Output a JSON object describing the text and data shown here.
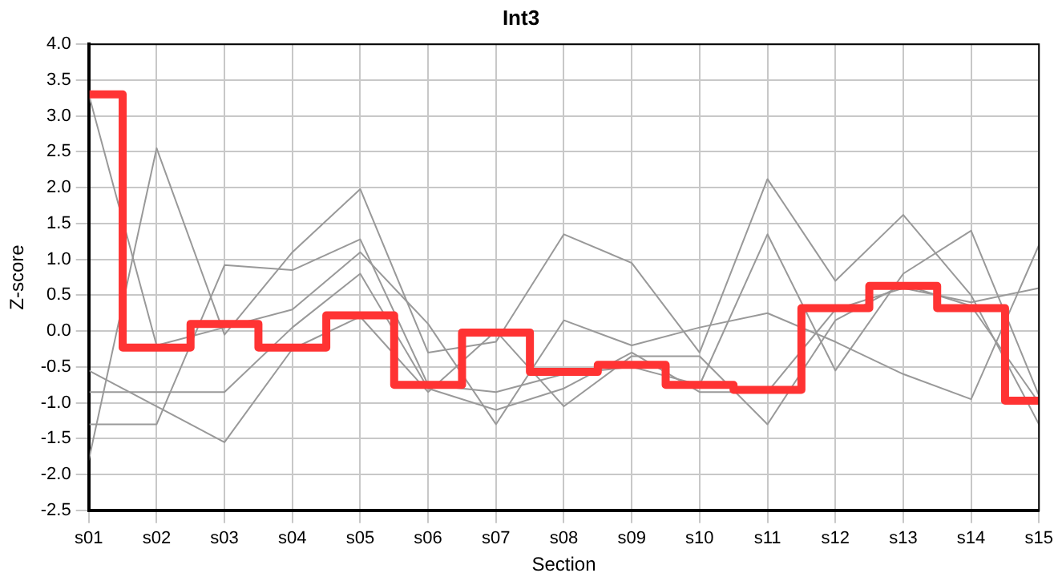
{
  "chart_data": {
    "type": "line",
    "title": "Int3",
    "xlabel": "Section",
    "ylabel": "Z-score",
    "categories": [
      "s01",
      "s02",
      "s03",
      "s04",
      "s05",
      "s06",
      "s07",
      "s08",
      "s09",
      "s10",
      "s11",
      "s12",
      "s13",
      "s14",
      "s15"
    ],
    "series": [
      {
        "type": "line",
        "color": "#999999",
        "values": [
          3.3,
          -0.2,
          0.05,
          0.3,
          1.1,
          0.1,
          -1.3,
          0.15,
          -0.2,
          0.05,
          0.25,
          -0.15,
          -0.6,
          -0.95,
          1.2
        ]
      },
      {
        "type": "line",
        "color": "#999999",
        "values": [
          -1.8,
          2.55,
          -0.05,
          1.1,
          1.98,
          -0.3,
          -0.15,
          1.35,
          0.95,
          -0.3,
          2.12,
          0.7,
          1.62,
          0.5,
          -1.3
        ]
      },
      {
        "type": "line",
        "color": "#999999",
        "values": [
          -1.3,
          -1.3,
          0.92,
          0.85,
          1.28,
          -0.75,
          -0.85,
          -0.6,
          -0.5,
          -0.75,
          1.35,
          -0.55,
          0.8,
          1.4,
          -0.9
        ]
      },
      {
        "type": "line",
        "color": "#999999",
        "values": [
          -0.85,
          -0.85,
          -0.85,
          0.05,
          0.8,
          -0.8,
          -1.1,
          -0.8,
          -0.3,
          -0.85,
          -0.85,
          0.3,
          0.6,
          0.4,
          0.6
        ]
      },
      {
        "type": "line",
        "color": "#999999",
        "values": [
          -0.55,
          -1.05,
          -1.55,
          -0.25,
          0.2,
          -0.85,
          0.0,
          -1.05,
          -0.35,
          -0.35,
          -1.3,
          0.15,
          0.65,
          0.35,
          -1.0
        ]
      },
      {
        "type": "step",
        "color": "#ff3333",
        "values": [
          3.3,
          -0.23,
          0.1,
          -0.23,
          0.22,
          -0.75,
          -0.02,
          -0.57,
          -0.47,
          -0.75,
          -0.82,
          0.32,
          0.63,
          0.32,
          -0.97
        ]
      }
    ],
    "ylim": [
      -2.5,
      4.0
    ],
    "yticks": [
      {
        "value": -2.5,
        "label": "-2.5"
      },
      {
        "value": -2,
        "label": "-2.0"
      },
      {
        "value": -1.5,
        "label": "-1.5"
      },
      {
        "value": -1,
        "label": "-1.0"
      },
      {
        "value": -0.5,
        "label": "-0.5"
      },
      {
        "value": 0,
        "label": "0.0"
      },
      {
        "value": 0.5,
        "label": "0.5"
      },
      {
        "value": 1,
        "label": "1.0"
      },
      {
        "value": 1.5,
        "label": "1.5"
      },
      {
        "value": 2,
        "label": "2.0"
      },
      {
        "value": 2.5,
        "label": "2.5"
      },
      {
        "value": 3,
        "label": "3.0"
      },
      {
        "value": 3.5,
        "label": "3.5"
      },
      {
        "value": 4,
        "label": "4.0"
      }
    ],
    "grid": true,
    "legend": false,
    "marker": "none"
  }
}
